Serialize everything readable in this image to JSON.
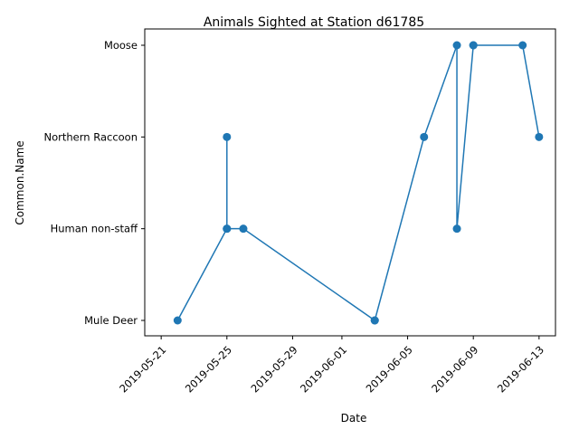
{
  "chart_data": {
    "type": "line",
    "title": "Animals Sighted at Station d61785",
    "xlabel": "Date",
    "ylabel": "Common.Name",
    "categories": [
      "Mule Deer",
      "Human non-staff",
      "Northern Raccoon",
      "Moose"
    ],
    "x_ticks": [
      "2019-05-21",
      "2019-05-25",
      "2019-05-29",
      "2019-06-01",
      "2019-06-05",
      "2019-06-09",
      "2019-06-13"
    ],
    "xlim": [
      "2019-05-20",
      "2019-06-14"
    ],
    "grid": false,
    "series": [
      {
        "points": [
          {
            "x": "2019-05-22",
            "y": "Mule Deer"
          },
          {
            "x": "2019-05-25",
            "y": "Human non-staff"
          },
          {
            "x": "2019-05-25",
            "y": "Northern Raccoon"
          },
          {
            "x": "2019-05-25",
            "y": "Human non-staff"
          },
          {
            "x": "2019-05-26",
            "y": "Human non-staff"
          },
          {
            "x": "2019-06-03",
            "y": "Mule Deer"
          },
          {
            "x": "2019-06-03",
            "y": "Mule Deer"
          },
          {
            "x": "2019-06-06",
            "y": "Northern Raccoon"
          },
          {
            "x": "2019-06-08",
            "y": "Moose"
          },
          {
            "x": "2019-06-08",
            "y": "Human non-staff"
          },
          {
            "x": "2019-06-09",
            "y": "Moose"
          },
          {
            "x": "2019-06-09",
            "y": "Moose"
          },
          {
            "x": "2019-06-12",
            "y": "Moose"
          },
          {
            "x": "2019-06-13",
            "y": "Northern Raccoon"
          }
        ]
      }
    ],
    "colors": {
      "line": "#1f77b4",
      "marker": "#1f77b4",
      "axis": "#000000"
    }
  }
}
